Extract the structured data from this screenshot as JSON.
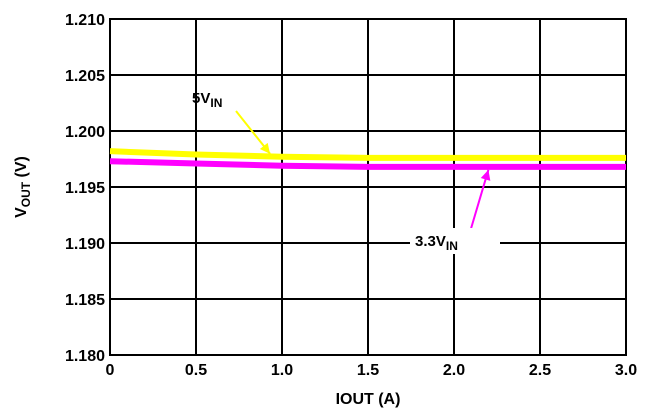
{
  "chart_data": {
    "type": "line",
    "xlabel": "IOUT (A)",
    "ylabel": {
      "main": "V",
      "sub": "OUT",
      "suffix": " (V)"
    },
    "xlim": [
      0,
      3.0
    ],
    "ylim": [
      1.18,
      1.21
    ],
    "x_ticks": [
      "0",
      "0.5",
      "1.0",
      "1.5",
      "2.0",
      "2.5",
      "3.0"
    ],
    "y_ticks": [
      "1.180",
      "1.185",
      "1.190",
      "1.195",
      "1.200",
      "1.205",
      "1.210"
    ],
    "grid": true,
    "series": [
      {
        "name": "5VIN",
        "label_main": "5V",
        "label_sub": "IN",
        "color": "#ffff00",
        "x": [
          0,
          0.5,
          1.0,
          1.5,
          2.0,
          2.5,
          3.0
        ],
        "y": [
          1.1982,
          1.1979,
          1.1977,
          1.1976,
          1.1976,
          1.1976,
          1.1976
        ]
      },
      {
        "name": "3.3VIN",
        "label_main": "3.3V",
        "label_sub": "IN",
        "color": "#ff00ff",
        "x": [
          0,
          0.5,
          1.0,
          1.5,
          2.0,
          2.5,
          3.0
        ],
        "y": [
          1.1973,
          1.1971,
          1.1969,
          1.1968,
          1.1968,
          1.1968,
          1.1968
        ]
      }
    ]
  }
}
